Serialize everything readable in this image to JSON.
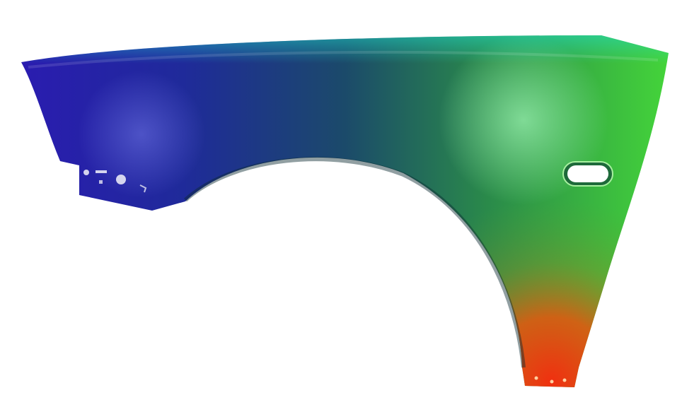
{
  "image": {
    "subject": "car-front-fender",
    "background_color": "#ffffff",
    "colors": {
      "left_blue": "#1c1aa8",
      "mid_teal": "#1f5a66",
      "right_green": "#3fcc3a",
      "highlight_green": "#7ff08a",
      "bottom_red": "#e0301a",
      "bottom_orange": "#f06a18"
    }
  }
}
